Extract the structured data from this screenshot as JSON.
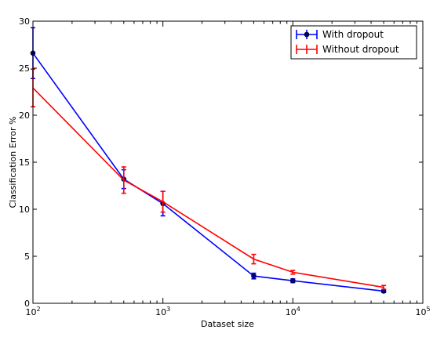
{
  "chart_data": {
    "type": "line",
    "title": "",
    "xlabel": "Dataset size",
    "ylabel": "Classification Error %",
    "xscale": "log",
    "xlim": [
      100,
      100000
    ],
    "ylim": [
      0,
      30
    ],
    "grid": false,
    "legend_position": "top-right",
    "x_ticks": [
      {
        "value": 100,
        "base": "10",
        "exp": "2"
      },
      {
        "value": 1000,
        "base": "10",
        "exp": "3"
      },
      {
        "value": 10000,
        "base": "10",
        "exp": "4"
      },
      {
        "value": 100000,
        "base": "10",
        "exp": "5"
      }
    ],
    "y_ticks": [
      0,
      5,
      10,
      15,
      20,
      25,
      30
    ],
    "series": [
      {
        "name": "With dropout",
        "color": "#0000ff",
        "marker": "circle",
        "x": [
          100,
          500,
          1000,
          5000,
          10000,
          50000
        ],
        "y": [
          26.6,
          13.2,
          10.6,
          2.9,
          2.4,
          1.3
        ],
        "err": [
          2.7,
          1.0,
          1.3,
          0.3,
          0.2,
          0.15
        ]
      },
      {
        "name": "Without dropout",
        "color": "#ff0000",
        "marker": "none",
        "x": [
          100,
          500,
          1000,
          5000,
          10000,
          50000
        ],
        "y": [
          22.9,
          13.1,
          10.8,
          4.7,
          3.3,
          1.7
        ],
        "err": [
          2.0,
          1.4,
          1.1,
          0.5,
          0.2,
          0.2
        ]
      }
    ]
  }
}
